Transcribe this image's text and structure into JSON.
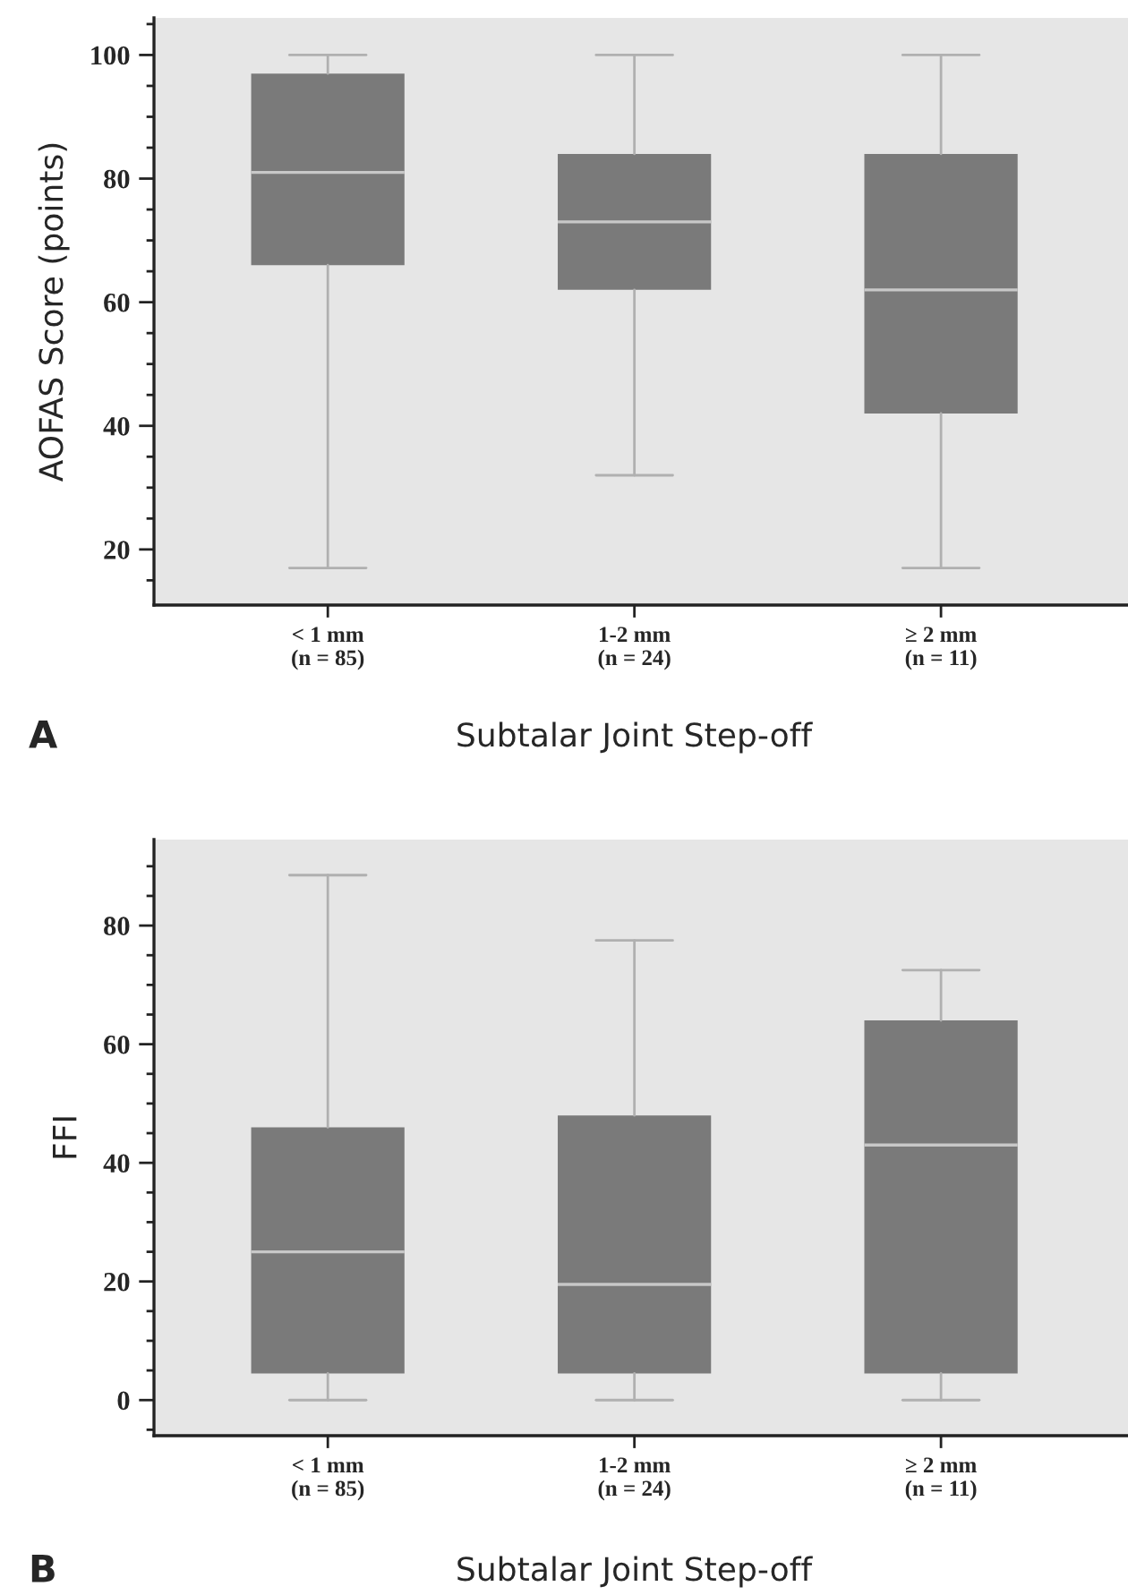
{
  "chart_data": [
    {
      "type": "box",
      "ylabel": "AOFAS Score (points)",
      "xlabel": "Subtalar Joint Step-off",
      "annotations": [
        "A"
      ],
      "categories": [
        "< 1 mm\n(n = 85)",
        "1-2 mm\n(n = 24)",
        "≥ 2 mm\n(n = 11)"
      ],
      "boxes": [
        {
          "low": 17,
          "q1": 66,
          "median": 81,
          "q3": 97,
          "high": 100
        },
        {
          "low": 32,
          "q1": 62,
          "median": 73,
          "q3": 84,
          "high": 100
        },
        {
          "low": 17,
          "q1": 42,
          "median": 62,
          "q3": 84,
          "high": 100
        }
      ],
      "color": "#7a7a7a",
      "ylim": [
        11,
        106
      ],
      "yticks": [
        {
          "value": 15,
          "label": null
        },
        20,
        {
          "value": 25,
          "label": null
        },
        {
          "value": 30,
          "label": null
        },
        {
          "value": 35,
          "label": null
        },
        40,
        {
          "value": 45,
          "label": null
        },
        {
          "value": 50,
          "label": null
        },
        {
          "value": 55,
          "label": null
        },
        60,
        {
          "value": 65,
          "label": null
        },
        {
          "value": 70,
          "label": null
        },
        {
          "value": 75,
          "label": null
        },
        80,
        {
          "value": 85,
          "label": null
        },
        {
          "value": 90,
          "label": null
        },
        {
          "value": 95,
          "label": null
        },
        100,
        {
          "value": 105,
          "label": null
        }
      ],
      "grid": false,
      "legend": false
    },
    {
      "type": "box",
      "ylabel": "FFI",
      "xlabel": "Subtalar Joint Step-off",
      "annotations": [
        "B"
      ],
      "categories": [
        "< 1 mm\n(n = 85)",
        "1-2 mm\n(n = 24)",
        "≥ 2 mm\n(n = 11)"
      ],
      "boxes": [
        {
          "low": 0,
          "q1": 4.5,
          "median": 25,
          "q3": 46,
          "high": 88.5
        },
        {
          "low": 0,
          "q1": 4.5,
          "median": 19.5,
          "q3": 48,
          "high": 77.5
        },
        {
          "low": 0,
          "q1": 4.5,
          "median": 43,
          "q3": 64,
          "high": 72.5
        }
      ],
      "color": "#7a7a7a",
      "ylim": [
        -6,
        94.5
      ],
      "yticks": [
        {
          "value": -5,
          "label": null
        },
        0,
        {
          "value": 5,
          "label": null
        },
        {
          "value": 10,
          "label": null
        },
        {
          "value": 15,
          "label": null
        },
        20,
        {
          "value": 25,
          "label": null
        },
        {
          "value": 30,
          "label": null
        },
        {
          "value": 35,
          "label": null
        },
        40,
        {
          "value": 45,
          "label": null
        },
        {
          "value": 50,
          "label": null
        },
        {
          "value": 55,
          "label": null
        },
        60,
        {
          "value": 65,
          "label": null
        },
        {
          "value": 70,
          "label": null
        },
        {
          "value": 75,
          "label": null
        },
        80,
        {
          "value": 85,
          "label": null
        },
        {
          "value": 90,
          "label": null
        }
      ],
      "grid": false,
      "legend": false
    }
  ]
}
